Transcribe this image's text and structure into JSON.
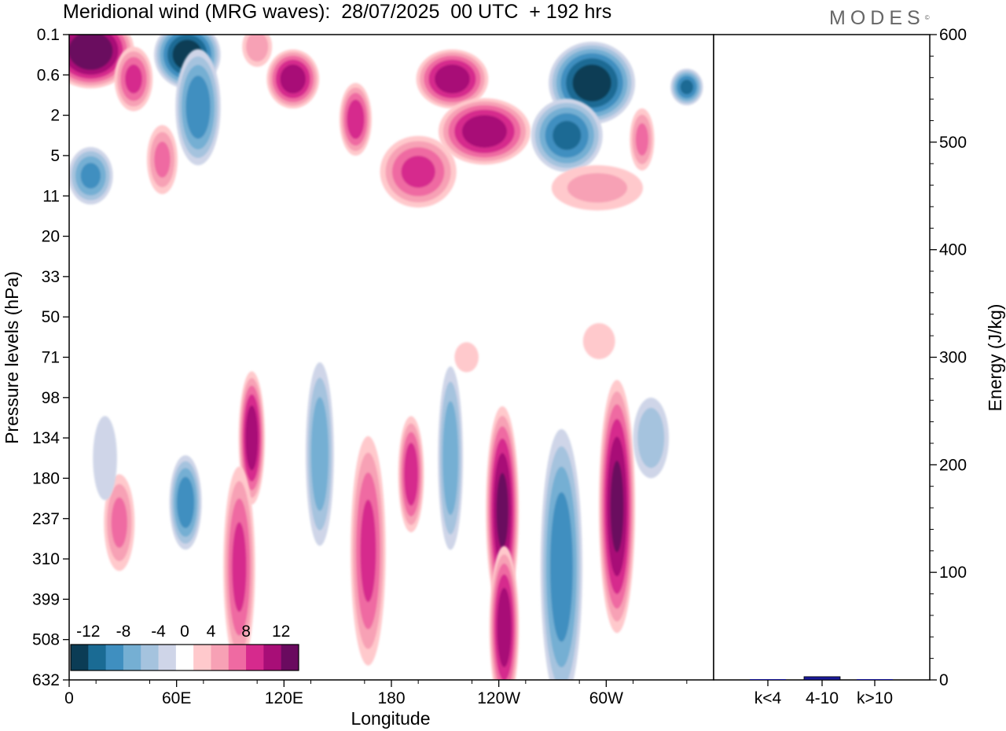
{
  "header": {
    "title": "Meridional wind (MRG waves):  28/07/2025  00 UTC  + 192 hrs",
    "logo": "MODES"
  },
  "chart_data": [
    {
      "type": "heatmap",
      "title": "Meridional wind (MRG waves):  28/07/2025  00 UTC  + 192 hrs",
      "xlabel": "Longitude",
      "ylabel": "Pressure levels (hPa)",
      "x_ticks": [
        "0",
        "60E",
        "120E",
        "180",
        "120W",
        "60W"
      ],
      "x_range": [
        0,
        360
      ],
      "y_ticks": [
        "0.1",
        "0.6",
        "2",
        "5",
        "11",
        "20",
        "33",
        "50",
        "71",
        "98",
        "134",
        "180",
        "237",
        "310",
        "399",
        "508",
        "632"
      ],
      "colorbar": {
        "labels": [
          "-12",
          "-8",
          "-4",
          "0",
          "4",
          "8",
          "12"
        ],
        "levels": [
          -14,
          -12,
          -10,
          -8,
          -6,
          -4,
          -2,
          2,
          4,
          6,
          8,
          10,
          12,
          14
        ],
        "colors": [
          "#0b3c55",
          "#1a6b94",
          "#3f8fc0",
          "#75afd3",
          "#a5c3de",
          "#cfd5e8",
          "#ffffff",
          "#ffc9cc",
          "#f7a1b5",
          "#ef6aa2",
          "#d62a8d",
          "#a80e77",
          "#6a0a5f"
        ]
      },
      "features": [
        {
          "kind": "neg",
          "lon": 12,
          "lev": 0.6,
          "w": 14,
          "h": 0.7,
          "amp": 6
        },
        {
          "kind": "pos",
          "lon": 12,
          "lev": 0.4,
          "w": 26,
          "h": 1.0,
          "amp": 14
        },
        {
          "kind": "pos",
          "lon": 36,
          "lev": 1.1,
          "w": 12,
          "h": 0.9,
          "amp": 8
        },
        {
          "kind": "neg",
          "lon": 66,
          "lev": 0.5,
          "w": 20,
          "h": 0.9,
          "amp": 13
        },
        {
          "kind": "neg",
          "lon": 72,
          "lev": 1.8,
          "w": 14,
          "h": 1.6,
          "amp": 9
        },
        {
          "kind": "pos",
          "lon": 125,
          "lev": 1.1,
          "w": 16,
          "h": 0.8,
          "amp": 11
        },
        {
          "kind": "pos",
          "lon": 160,
          "lev": 2.1,
          "w": 10,
          "h": 1.0,
          "amp": 9
        },
        {
          "kind": "pos",
          "lon": 105,
          "lev": 0.3,
          "w": 10,
          "h": 0.6,
          "amp": 5
        },
        {
          "kind": "pos",
          "lon": 214,
          "lev": 1.1,
          "w": 22,
          "h": 0.8,
          "amp": 11
        },
        {
          "kind": "pos",
          "lon": 232,
          "lev": 2.4,
          "w": 28,
          "h": 0.9,
          "amp": 11
        },
        {
          "kind": "pos",
          "lon": 195,
          "lev": 3.4,
          "w": 24,
          "h": 1.0,
          "amp": 8
        },
        {
          "kind": "neg",
          "lon": 292,
          "lev": 1.2,
          "w": 26,
          "h": 1.1,
          "amp": 13
        },
        {
          "kind": "neg",
          "lon": 278,
          "lev": 2.5,
          "w": 22,
          "h": 1.0,
          "amp": 10
        },
        {
          "kind": "neg",
          "lon": 345,
          "lev": 1.3,
          "w": 10,
          "h": 0.5,
          "amp": 10
        },
        {
          "kind": "pos",
          "lon": 320,
          "lev": 2.6,
          "w": 8,
          "h": 0.9,
          "amp": 6
        },
        {
          "kind": "pos",
          "lon": 52,
          "lev": 3.1,
          "w": 10,
          "h": 1.0,
          "amp": 6
        },
        {
          "kind": "neg",
          "lon": 12,
          "lev": 3.5,
          "w": 14,
          "h": 0.8,
          "amp": 8
        },
        {
          "kind": "pos",
          "lon": 295,
          "lev": 3.8,
          "w": 32,
          "h": 0.7,
          "amp": 4
        },
        {
          "kind": "neg",
          "lon": 65,
          "lev": 11.6,
          "w": 10,
          "h": 1.3,
          "amp": 9
        },
        {
          "kind": "pos",
          "lon": 102,
          "lev": 10.0,
          "w": 8,
          "h": 1.8,
          "amp": 11
        },
        {
          "kind": "pos",
          "lon": 95,
          "lev": 13.2,
          "w": 10,
          "h": 2.8,
          "amp": 8
        },
        {
          "kind": "neg",
          "lon": 140,
          "lev": 10.4,
          "w": 9,
          "h": 2.6,
          "amp": 7
        },
        {
          "kind": "pos",
          "lon": 167,
          "lev": 12.8,
          "w": 11,
          "h": 3.2,
          "amp": 8
        },
        {
          "kind": "pos",
          "lon": 191,
          "lev": 10.9,
          "w": 8,
          "h": 1.6,
          "amp": 9
        },
        {
          "kind": "neg",
          "lon": 213,
          "lev": 10.5,
          "w": 8,
          "h": 2.6,
          "amp": 7
        },
        {
          "kind": "pos",
          "lon": 242,
          "lev": 11.8,
          "w": 10,
          "h": 2.8,
          "amp": 12
        },
        {
          "kind": "pos",
          "lon": 243,
          "lev": 14.7,
          "w": 9,
          "h": 2.2,
          "amp": 11
        },
        {
          "kind": "neg",
          "lon": 275,
          "lev": 13.2,
          "w": 13,
          "h": 3.8,
          "amp": 9
        },
        {
          "kind": "pos",
          "lon": 306,
          "lev": 11.7,
          "w": 11,
          "h": 3.4,
          "amp": 12
        },
        {
          "kind": "neg",
          "lon": 325,
          "lev": 10.0,
          "w": 12,
          "h": 1.2,
          "amp": 5
        },
        {
          "kind": "pos",
          "lon": 28,
          "lev": 12.1,
          "w": 10,
          "h": 1.4,
          "amp": 6
        },
        {
          "kind": "neg",
          "lon": 20,
          "lev": 10.5,
          "w": 9,
          "h": 1.4,
          "amp": 3
        },
        {
          "kind": "pos",
          "lon": 222,
          "lev": 8.0,
          "w": 9,
          "h": 0.5,
          "amp": 3
        },
        {
          "kind": "pos",
          "lon": 296,
          "lev": 7.6,
          "w": 12,
          "h": 0.6,
          "amp": 3
        }
      ]
    },
    {
      "type": "bar",
      "categories": [
        "k<4",
        "4-10",
        "k>10"
      ],
      "values": [
        0,
        3,
        0
      ],
      "ylabel": "Energy (J/kg)",
      "ylim": [
        0,
        600
      ],
      "y_ticks": [
        "0",
        "100",
        "200",
        "300",
        "400",
        "500",
        "600"
      ],
      "bar_color": "#1a1a99"
    }
  ]
}
